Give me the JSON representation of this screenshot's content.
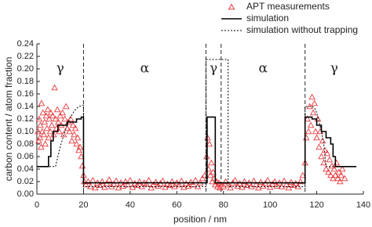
{
  "chart_data": {
    "type": "scatter",
    "x_label": "position  /  nm",
    "y_label": "carbon content  /  atom fraction",
    "xlim": [
      0,
      140
    ],
    "xticks": [
      0,
      20,
      40,
      60,
      80,
      100,
      120,
      140
    ],
    "ylim": [
      0,
      0.24
    ],
    "yticks": [
      {
        "value": 0,
        "label": "0.00"
      },
      {
        "value": 0.02,
        "label": "0.02"
      },
      {
        "value": 0.04,
        "label": "0.04"
      },
      {
        "value": 0.06,
        "label": "0.06"
      },
      {
        "value": 0.08,
        "label": "0.08"
      },
      {
        "value": 0.1,
        "label": "0.10"
      },
      {
        "value": 0.12,
        "label": "0.12"
      },
      {
        "value": 0.14,
        "label": "0.14"
      },
      {
        "value": 0.16,
        "label": "0.16"
      },
      {
        "value": 0.18,
        "label": "0.18"
      },
      {
        "value": 0.2,
        "label": "0.20"
      },
      {
        "value": 0.22,
        "label": "0.22"
      },
      {
        "value": 0.24,
        "label": "0.24"
      }
    ],
    "grid": false,
    "legend": "top-right",
    "boundaries": [
      20,
      72.5,
      79,
      115
    ],
    "phases": [
      "γ",
      "α",
      "γ",
      "α",
      "γ"
    ],
    "series": [
      {
        "name": "APT measurements",
        "type": "scatter",
        "marker": "triangle",
        "color": "#e8383d",
        "x": [
          0.5,
          0.8,
          1,
          1.3,
          1.5,
          1.8,
          2,
          2.3,
          2.6,
          3,
          3.3,
          3.6,
          4,
          4.3,
          4.7,
          5,
          5.3,
          5.7,
          6,
          6.4,
          6.8,
          7.2,
          7.6,
          8,
          8.4,
          8.8,
          9.2,
          9.6,
          10,
          10.5,
          11,
          11.5,
          12,
          12.5,
          13,
          13.5,
          14,
          14.5,
          15,
          15.5,
          16,
          16.5,
          17,
          17.5,
          18,
          18.5,
          19,
          19.5,
          20,
          20.3,
          21,
          22,
          23,
          24,
          25,
          26,
          27,
          28,
          29,
          30,
          31,
          32,
          33,
          34,
          35,
          36,
          37,
          38,
          39,
          40,
          41,
          42,
          43,
          44,
          45,
          46,
          47,
          48,
          49,
          50,
          51,
          52,
          53,
          54,
          55,
          56,
          57,
          58,
          59,
          60,
          61,
          62,
          63,
          64,
          65,
          66,
          67,
          68,
          69,
          70,
          71,
          72,
          72.8,
          73.2,
          73.6,
          74,
          74.4,
          74.8,
          75.2,
          75.6,
          76,
          76.5,
          77,
          77.5,
          78,
          78.5,
          79,
          80,
          81,
          82,
          83,
          84,
          85,
          86,
          87,
          88,
          89,
          90,
          91,
          92,
          93,
          94,
          95,
          96,
          97,
          98,
          99,
          100,
          101,
          102,
          103,
          104,
          105,
          106,
          107,
          108,
          109,
          110,
          111,
          112,
          113,
          114,
          115,
          115.5,
          116,
          116.5,
          117,
          117.5,
          118,
          118.5,
          119,
          119.5,
          120,
          120.5,
          121,
          121.5,
          122,
          122.5,
          123,
          123.5,
          124,
          124.5,
          125,
          125.5,
          126,
          126.5,
          127,
          127.5,
          128,
          128.5,
          129,
          129.5,
          130,
          130.5,
          131,
          132
        ],
        "values": [
          0.1,
          0.085,
          0.12,
          0.09,
          0.11,
          0.075,
          0.145,
          0.1,
          0.13,
          0.095,
          0.115,
          0.08,
          0.125,
          0.105,
          0.135,
          0.09,
          0.12,
          0.1,
          0.13,
          0.11,
          0.125,
          0.095,
          0.17,
          0.12,
          0.105,
          0.135,
          0.115,
          0.1,
          0.125,
          0.11,
          0.13,
          0.095,
          0.12,
          0.14,
          0.105,
          0.115,
          0.1,
          0.12,
          0.085,
          0.11,
          0.095,
          0.105,
          0.08,
          0.09,
          0.07,
          0.075,
          0.06,
          0.045,
          0.03,
          0.02,
          0.015,
          0.02,
          0.012,
          0.022,
          0.01,
          0.018,
          0.014,
          0.02,
          0.011,
          0.017,
          0.023,
          0.012,
          0.016,
          0.021,
          0.01,
          0.018,
          0.013,
          0.02,
          0.015,
          0.022,
          0.011,
          0.017,
          0.014,
          0.02,
          0.012,
          0.018,
          0.016,
          0.022,
          0.01,
          0.015,
          0.019,
          0.013,
          0.017,
          0.021,
          0.011,
          0.016,
          0.014,
          0.02,
          0.012,
          0.018,
          0.015,
          0.021,
          0.011,
          0.017,
          0.013,
          0.019,
          0.015,
          0.022,
          0.012,
          0.018,
          0.025,
          0.03,
          0.06,
          0.09,
          0.04,
          0.08,
          0.03,
          0.05,
          0.02,
          0.035,
          0.025,
          0.015,
          0.02,
          0.012,
          0.018,
          0.01,
          0.015,
          0.012,
          0.02,
          0.015,
          0.01,
          0.018,
          0.022,
          0.013,
          0.017,
          0.011,
          0.02,
          0.014,
          0.018,
          0.012,
          0.021,
          0.015,
          0.01,
          0.019,
          0.013,
          0.017,
          0.022,
          0.011,
          0.016,
          0.02,
          0.013,
          0.018,
          0.012,
          0.021,
          0.015,
          0.01,
          0.019,
          0.014,
          0.017,
          0.012,
          0.02,
          0.03,
          0.05,
          0.09,
          0.12,
          0.1,
          0.14,
          0.11,
          0.155,
          0.13,
          0.145,
          0.1,
          0.09,
          0.12,
          0.075,
          0.1,
          0.06,
          0.085,
          0.05,
          0.07,
          0.04,
          0.065,
          0.035,
          0.055,
          0.03,
          0.045,
          0.025,
          0.04,
          0.03,
          0.05,
          0.025,
          0.035,
          0.02,
          0.03,
          0.04,
          0.025
        ]
      },
      {
        "name": "simulation",
        "type": "line",
        "line_style": "solid",
        "color": "#000000",
        "x": [
          0,
          5,
          5,
          6,
          6,
          7,
          7,
          9,
          9,
          13,
          13,
          17,
          17,
          19,
          19,
          20,
          20,
          73,
          73,
          76.5,
          76.5,
          115,
          115,
          118,
          118,
          120,
          120,
          122,
          122,
          124,
          124,
          126,
          126,
          127,
          127,
          128,
          128,
          137
        ],
        "values": [
          0.044,
          0.044,
          0.06,
          0.06,
          0.085,
          0.085,
          0.1,
          0.1,
          0.11,
          0.11,
          0.115,
          0.115,
          0.12,
          0.12,
          0.123,
          0.123,
          0.018,
          0.018,
          0.123,
          0.123,
          0.018,
          0.018,
          0.123,
          0.123,
          0.12,
          0.12,
          0.11,
          0.11,
          0.1,
          0.1,
          0.09,
          0.09,
          0.08,
          0.08,
          0.06,
          0.06,
          0.044,
          0.044
        ]
      },
      {
        "name": "simulation without trapping",
        "type": "line",
        "line_style": "dotted",
        "color": "#000000",
        "x": [
          0,
          8,
          9,
          10,
          11,
          12,
          14,
          16,
          18,
          20,
          20,
          72.5,
          72.5,
          82,
          82,
          115,
          115,
          118,
          119,
          120,
          121,
          122,
          123,
          124,
          137
        ],
        "values": [
          0.044,
          0.044,
          0.06,
          0.075,
          0.088,
          0.1,
          0.12,
          0.133,
          0.14,
          0.142,
          0.012,
          0.012,
          0.215,
          0.215,
          0.012,
          0.012,
          0.14,
          0.14,
          0.138,
          0.13,
          0.115,
          0.1,
          0.08,
          0.044,
          0.044
        ]
      }
    ]
  }
}
